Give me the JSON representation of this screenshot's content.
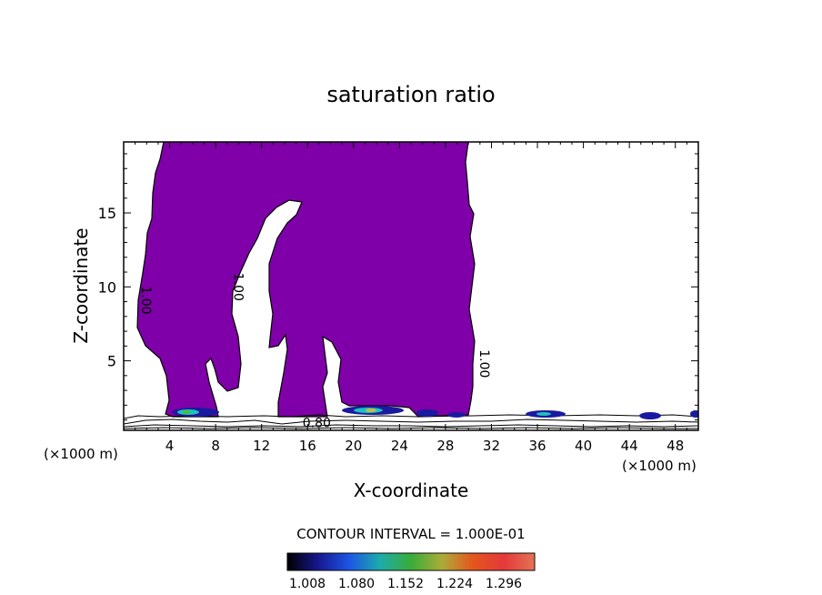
{
  "chart_data": {
    "type": "heatmap",
    "title": "saturation ratio",
    "xlabel": "X-coordinate",
    "ylabel": "Z-coordinate",
    "x_unit": "(×1000 m)",
    "y_unit": "(×1000 m)",
    "xlim": [
      0,
      50
    ],
    "ylim": [
      0.3,
      19.8
    ],
    "x_ticks": [
      4,
      8,
      12,
      16,
      20,
      24,
      28,
      32,
      36,
      40,
      44,
      48
    ],
    "y_ticks": [
      5,
      10,
      15
    ],
    "contour_labels": [
      {
        "text": "1.00",
        "x": 1.6,
        "z": 9.1
      },
      {
        "text": "1.00",
        "x": 9.6,
        "z": 10.0
      },
      {
        "text": "1.00",
        "x": 31.0,
        "z": 4.8
      },
      {
        "text": "0.80",
        "x": 16.8,
        "z": 0.5
      }
    ],
    "contour_interval": "CONTOUR INTERVAL = 1.000E-01",
    "colorbar": {
      "labels": [
        "1.008",
        "1.080",
        "1.152",
        "1.224",
        "1.296"
      ],
      "colors": [
        "#000000",
        "#1a1aa0",
        "#2060ff",
        "#20c0c0",
        "#40c040",
        "#c0c040",
        "#ff6020",
        "#ff4040",
        "#ff8060"
      ]
    },
    "supersaturated_fill_color": "#7f00a8"
  }
}
